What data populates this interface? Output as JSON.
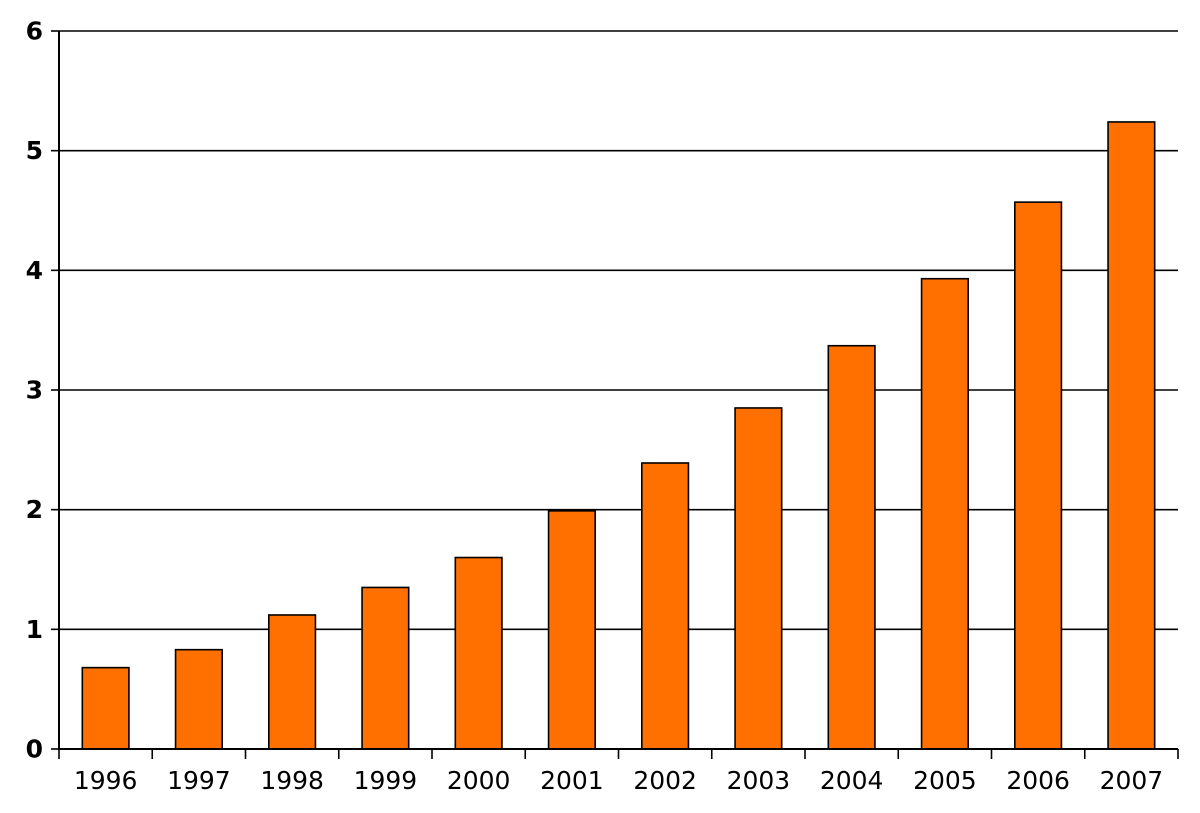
{
  "chart_data": {
    "type": "bar",
    "title": "",
    "xlabel": "",
    "ylabel": "",
    "categories": [
      "1996",
      "1997",
      "1998",
      "1999",
      "2000",
      "2001",
      "2002",
      "2003",
      "2004",
      "2005",
      "2006",
      "2007"
    ],
    "values": [
      0.68,
      0.83,
      1.12,
      1.35,
      1.6,
      1.99,
      2.39,
      2.85,
      3.37,
      3.93,
      4.57,
      5.24
    ],
    "ylim": [
      0,
      6
    ],
    "yticks": [
      "0",
      "1",
      "2",
      "3",
      "4",
      "5",
      "6"
    ],
    "grid": true,
    "colors": {
      "bar": "#ff7000",
      "grid": "#000000"
    }
  }
}
